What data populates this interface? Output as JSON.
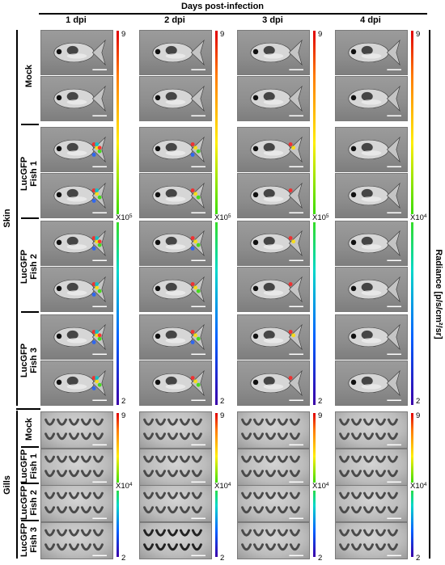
{
  "header": {
    "title": "Days post-infection"
  },
  "columns": [
    {
      "label": "1 dpi",
      "scale_prefix": "X10",
      "scale_exp": "5"
    },
    {
      "label": "2 dpi",
      "scale_prefix": "X10",
      "scale_exp": "5"
    },
    {
      "label": "3 dpi",
      "scale_prefix": "X10",
      "scale_exp": "5"
    },
    {
      "label": "4 dpi",
      "scale_prefix": "X10",
      "scale_exp": "4"
    }
  ],
  "gills_scales": [
    {
      "scale_prefix": "X10",
      "scale_exp": "4"
    },
    {
      "scale_prefix": "X10",
      "scale_exp": "4"
    },
    {
      "scale_prefix": "X10",
      "scale_exp": "4"
    },
    {
      "scale_prefix": "X10",
      "scale_exp": "4"
    }
  ],
  "colorbar": {
    "max_label": "9",
    "min_label": "2"
  },
  "sections": [
    {
      "label": "Skin",
      "groups": [
        {
          "line1": "Mock",
          "line2": ""
        },
        {
          "line1": "LucGFP",
          "line2": "Fish 1"
        },
        {
          "line1": "LucGFP",
          "line2": "Fish 2"
        },
        {
          "line1": "LucGFP",
          "line2": "Fish 3"
        }
      ]
    },
    {
      "label": "Gills",
      "groups": [
        {
          "line1": "Mock",
          "line2": ""
        },
        {
          "line1": "LucGFP",
          "line2": "Fish 1"
        },
        {
          "line1": "LucGFP",
          "line2": "Fish 2"
        },
        {
          "line1": "LucGFP",
          "line2": "Fish 3"
        }
      ]
    }
  ],
  "radiance_label": "Radiance [p/s/cm²/sr]"
}
